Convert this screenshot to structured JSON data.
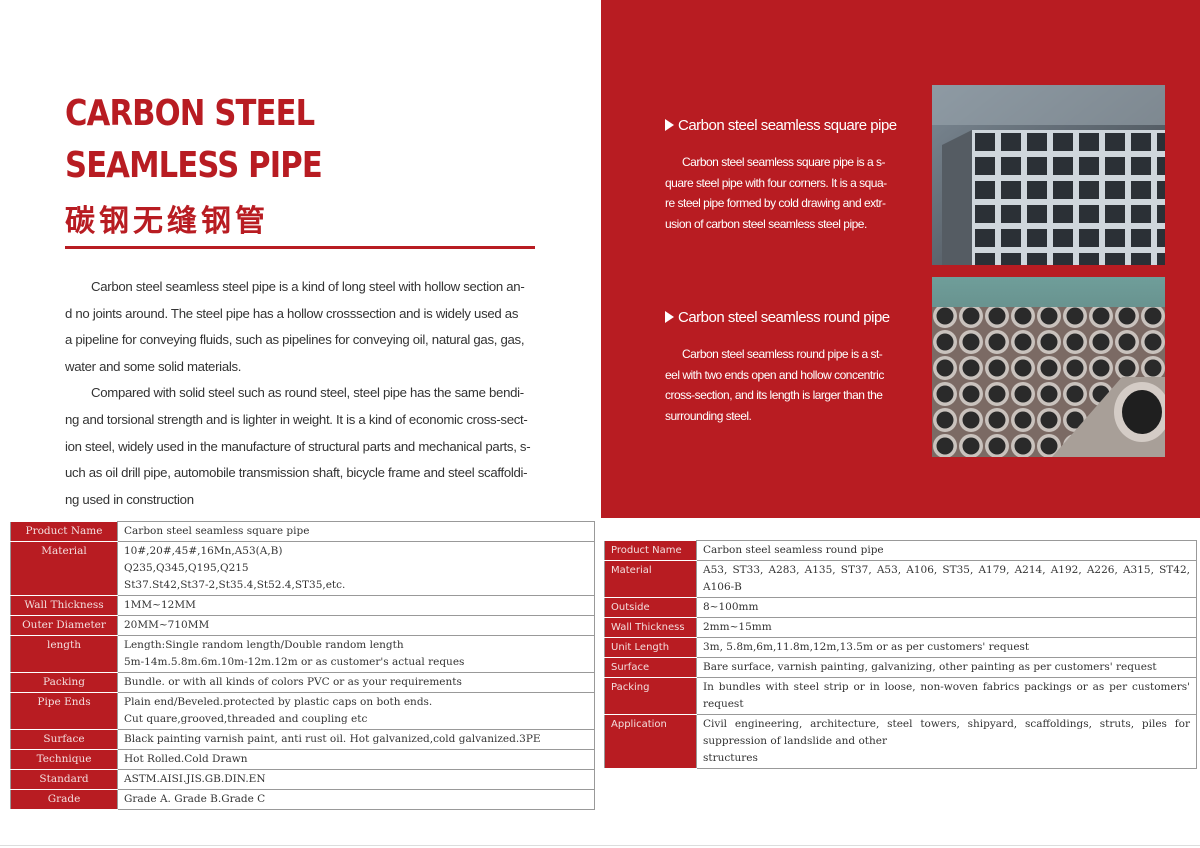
{
  "title": {
    "line1": "CARBON STEEL",
    "line2": "SEAMLESS PIPE",
    "chinese": "碳钢无缝钢管"
  },
  "intro": {
    "p1": [
      "Carbon steel seamless steel pipe is a kind of long steel with hollow section an-",
      "d no joints around. The steel pipe has a hollow crosssection and is widely used as",
      "a pipeline for conveying fluids, such as pipelines for conveying oil, natural gas, gas,",
      "water and some solid materials."
    ],
    "p2": [
      "Compared with solid steel such as round steel, steel pipe has the same bendi-",
      "ng and torsional strength and is lighter in weight. It is a kind of economic cross-sect-",
      "ion steel, widely used in the manufacture of structural parts and mechanical parts, s-",
      "uch as oil drill pipe, automobile transmission shaft, bicycle frame and steel scaffoldi-",
      "ng used in construction"
    ]
  },
  "panel": {
    "square": {
      "heading": "Carbon steel seamless square pipe",
      "text": [
        "Carbon steel seamless square pipe is a s-",
        "quare steel pipe with four corners. It is a squa-",
        "re steel pipe formed by cold drawing and extr-",
        "usion of carbon steel seamless steel pipe."
      ]
    },
    "round": {
      "heading": "Carbon steel seamless round pipe",
      "text": [
        "Carbon steel seamless round pipe is a st-",
        "eel with two ends open and hollow concentric",
        "cross-section, and its length is larger than the",
        "surrounding steel."
      ]
    }
  },
  "colors": {
    "brand_red": "#b81c22"
  },
  "square_table": [
    {
      "label": "Product Name",
      "lines": [
        "Carbon steel seamless square pipe"
      ]
    },
    {
      "label": "Material",
      "lines": [
        "10#,20#,45#,16Mn,A53(A,B)",
        "Q235,Q345,Q195,Q215",
        "St37.St42,St37-2,St35.4,St52.4,ST35,etc."
      ]
    },
    {
      "label": "Wall Thickness",
      "lines": [
        "1MM~12MM"
      ]
    },
    {
      "label": "Outer Diameter",
      "lines": [
        "20MM~710MM"
      ]
    },
    {
      "label": "length",
      "lines": [
        "Length:Single random length/Double random length",
        "5m-14m.5.8m.6m.10m-12m.12m or as customer's actual reques"
      ]
    },
    {
      "label": "Packing",
      "lines": [
        "Bundle. or with all kinds of colors PVC or as your requirements"
      ]
    },
    {
      "label": "Pipe Ends",
      "lines": [
        "Plain end/Beveled.protected by plastic caps on both ends.",
        "Cut quare,grooved,threaded and coupling etc"
      ]
    },
    {
      "label": "Surface",
      "lines": [
        "Black painting varnish paint, anti rust oil. Hot galvanized,cold galvanized.3PE"
      ]
    },
    {
      "label": "Technique",
      "lines": [
        "Hot Rolled.Cold Drawn"
      ]
    },
    {
      "label": "Standard",
      "lines": [
        "ASTM.AISI.JIS.GB.DIN.EN"
      ]
    },
    {
      "label": "Grade",
      "lines": [
        "Grade A. Grade B.Grade C"
      ]
    }
  ],
  "round_table": [
    {
      "label": "Product Name",
      "lines": [
        "Carbon steel seamless round pipe"
      ]
    },
    {
      "label": "Material",
      "lines": [
        "A53, ST33, A283, A135, ST37, A53, A106, ST35, A179, A214, A192, A226, A315, ST42, A106-B"
      ]
    },
    {
      "label": "Outside",
      "lines": [
        "8~100mm"
      ]
    },
    {
      "label": "Wall Thickness",
      "lines": [
        "2mm~15mm"
      ]
    },
    {
      "label": "Unit Length",
      "lines": [
        "3m, 5.8m,6m,11.8m,12m,13.5m or as per customers' request"
      ]
    },
    {
      "label": "Surface",
      "lines": [
        "Bare surface, varnish painting, galvanizing, other painting as per customers' request"
      ]
    },
    {
      "label": "Packing",
      "lines": [
        "In bundles with steel strip or in loose, non-woven fabrics packings or as per customers' request"
      ]
    },
    {
      "label": "Application",
      "lines": [
        "Civil engineering, architecture, steel towers, shipyard, scaffoldings, struts, piles for suppression of landslide and other",
        "structures"
      ]
    }
  ]
}
